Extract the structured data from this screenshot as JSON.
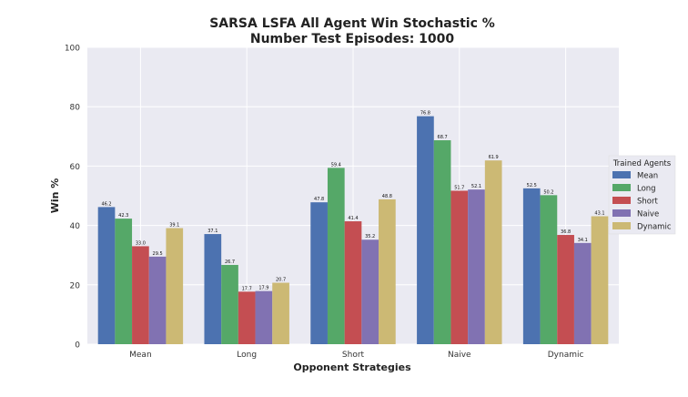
{
  "chart_data": {
    "type": "bar",
    "title": "SARSA LSFA All Agent Win Stochastic %",
    "subtitle": "Number Test Episodes: 1000",
    "xlabel": "Opponent Strategies",
    "ylabel": "Win %",
    "ylim": [
      0,
      100
    ],
    "yticks": [
      0,
      20,
      40,
      60,
      80,
      100
    ],
    "grid": true,
    "legend_title": "Trained Agents",
    "legend_position": "right",
    "categories": [
      "Mean",
      "Long",
      "Short",
      "Naive",
      "Dynamic"
    ],
    "series": [
      {
        "name": "Mean",
        "color": "#4c72b0",
        "values": [
          46.2,
          37.1,
          47.8,
          76.8,
          52.5
        ],
        "labels": [
          "46.2",
          "37.1",
          "47.8",
          "76.8",
          "52.5"
        ]
      },
      {
        "name": "Long",
        "color": "#55a868",
        "values": [
          42.3,
          26.7,
          59.4,
          68.7,
          50.2
        ],
        "labels": [
          "42.3",
          "26.7",
          "59.4",
          "68.7",
          "50.2"
        ]
      },
      {
        "name": "Short",
        "color": "#c44e52",
        "values": [
          33.0,
          17.7,
          41.4,
          51.7,
          36.8
        ],
        "labels": [
          "33.0",
          "17.7",
          "41.4",
          "51.7",
          "36.8"
        ]
      },
      {
        "name": "Naive",
        "color": "#8172b2",
        "values": [
          29.5,
          17.9,
          35.2,
          52.1,
          34.1
        ],
        "labels": [
          "29.5",
          "17.9",
          "35.2",
          "52.1",
          "34.1"
        ]
      },
      {
        "name": "Dynamic",
        "color": "#ccb974",
        "values": [
          39.1,
          20.7,
          48.8,
          61.9,
          43.1
        ],
        "labels": [
          "39.1",
          "20.7",
          "48.8",
          "61.9",
          "43.1"
        ]
      }
    ]
  }
}
